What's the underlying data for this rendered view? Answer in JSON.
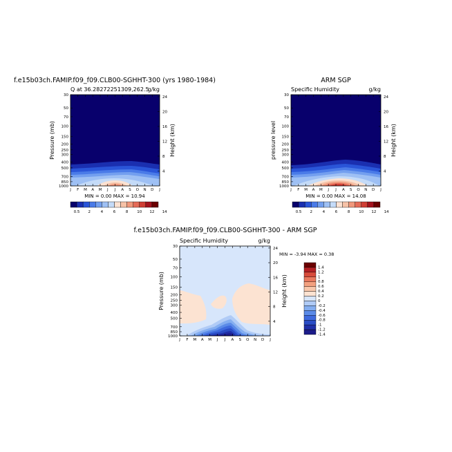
{
  "figure": {
    "panel_left": {
      "title": "f.e15b03ch.FAMIP.f09_f09.CLB00-SGHHT-300 (yrs 1980-1984)",
      "subtitle_left": "Q at 36.28272251309,262.5",
      "subtitle_right": "g/kg",
      "ylabel": "Pressure (mb)",
      "ylabel_right": "Height (km)",
      "stats": "MIN =    0.00 MAX =   10.94"
    },
    "panel_right": {
      "title": "ARM SGP",
      "subtitle_left": "Specific Humidity",
      "subtitle_right": "g/kg",
      "ylabel": "pressure level",
      "ylabel_right": "Height (km)",
      "stats": "MIN =    0.00 MAX =   14.08"
    },
    "panel_diff": {
      "title": "f.e15b03ch.FAMIP.f09_f09.CLB00-SGHHT-300 - ARM SGP",
      "subtitle_left": "Specific Humidity",
      "subtitle_right": "g/kg",
      "ylabel": "Pressure (mb)",
      "ylabel_right": "Height (km)",
      "stats": "MIN =   -3.94 MAX =    0.38"
    }
  },
  "chart_data": [
    {
      "type": "heatmap",
      "title": "f.e15b03ch.FAMIP.f09_f09.CLB00-SGHHT-300 (yrs 1980-1984)",
      "x_tick_labels": [
        "J",
        "F",
        "M",
        "A",
        "M",
        "J",
        "J",
        "A",
        "S",
        "O",
        "N",
        "D",
        "J"
      ],
      "y_tick_labels": [
        "30",
        "50",
        "70",
        "100",
        "150",
        "200",
        "250",
        "300",
        "400",
        "500",
        "700",
        "850",
        "1000"
      ],
      "y2_tick_labels": [
        "24",
        "20",
        "16",
        "12",
        "8",
        "4"
      ],
      "ylabel": "Pressure (mb)",
      "y2label": "Height (km)",
      "min": 0.0,
      "max": 10.94,
      "colorbar_labels": [
        "0.5",
        "2",
        "4",
        "6",
        "8",
        "10",
        "12",
        "14"
      ]
    },
    {
      "type": "heatmap",
      "title": "ARM SGP",
      "x_tick_labels": [
        "J",
        "F",
        "M",
        "A",
        "M",
        "J",
        "J",
        "A",
        "S",
        "O",
        "N",
        "D",
        "J"
      ],
      "y_tick_labels": [
        "30",
        "50",
        "70",
        "100",
        "150",
        "200",
        "250",
        "300",
        "400",
        "500",
        "700",
        "850",
        "1000"
      ],
      "y2_tick_labels": [
        "24",
        "20",
        "16",
        "12",
        "8",
        "4"
      ],
      "ylabel": "pressure level",
      "y2label": "Height (km)",
      "min": 0.0,
      "max": 14.08,
      "colorbar_labels": [
        "0.5",
        "2",
        "4",
        "6",
        "8",
        "10",
        "12",
        "14"
      ]
    },
    {
      "type": "heatmap",
      "title": "f.e15b03ch.FAMIP.f09_f09.CLB00-SGHHT-300 - ARM SGP",
      "x_tick_labels": [
        "J",
        "F",
        "M",
        "A",
        "M",
        "J",
        "J",
        "A",
        "S",
        "O",
        "N",
        "D",
        "J"
      ],
      "y_tick_labels": [
        "30",
        "50",
        "70",
        "100",
        "150",
        "200",
        "250",
        "300",
        "400",
        "500",
        "700",
        "850",
        "1000"
      ],
      "y2_tick_labels": [
        "24",
        "20",
        "16",
        "12",
        "8",
        "4"
      ],
      "ylabel": "Pressure (mb)",
      "y2label": "Height (km)",
      "min": -3.94,
      "max": 0.38,
      "colorbar_labels": [
        "1.4",
        "1.2",
        "1",
        "0.8",
        "0.6",
        "0.4",
        "0.2",
        "0",
        "-0.2",
        "-0.4",
        "-0.6",
        "-0.8",
        "-1",
        "-1.2",
        "-1.4"
      ]
    }
  ],
  "colors": {
    "abs_scale": [
      "#08006c",
      "#1a2fb0",
      "#2a55d8",
      "#4a7be8",
      "#739fef",
      "#9ec0f4",
      "#c4dbf8",
      "#fbe2d2",
      "#f6c2a7",
      "#f0987c",
      "#e56b57",
      "#cf3e34",
      "#a3131d",
      "#6b0000"
    ],
    "diff_scale": [
      "#1c1c8a",
      "#1f2fa8",
      "#2a4dc6",
      "#3e6ade",
      "#5b8be8",
      "#84aef0",
      "#b0cbf6",
      "#d7e6fb",
      "#fce3d2",
      "#f9c7ab",
      "#f3a180",
      "#ea7a5f",
      "#d84b3b",
      "#b42024",
      "#6b0000"
    ]
  }
}
